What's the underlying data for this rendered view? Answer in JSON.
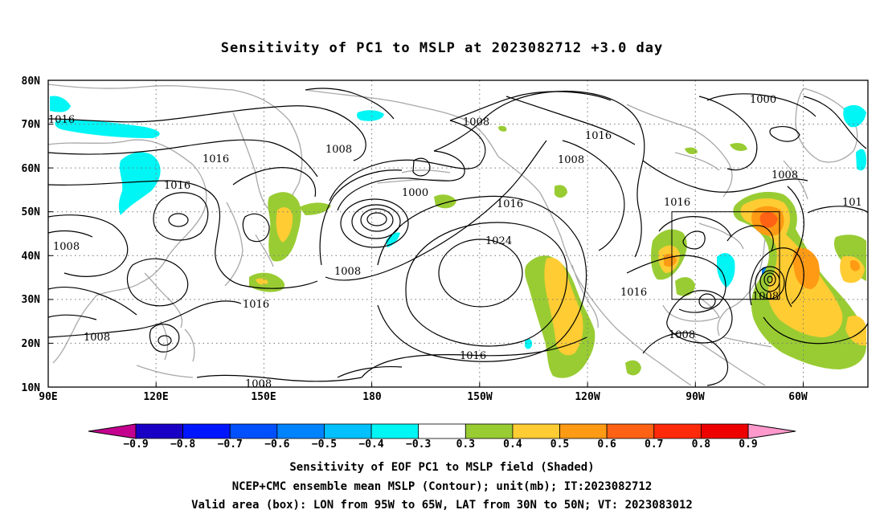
{
  "title": "Sensitivity of PC1 to MSLP at 2023082712 +3.0 day",
  "map": {
    "lat_labels": [
      "80N",
      "70N",
      "60N",
      "50N",
      "40N",
      "30N",
      "20N",
      "10N"
    ],
    "lon_labels": [
      "90E",
      "120E",
      "150E",
      "180",
      "150W",
      "120W",
      "90W",
      "60W"
    ],
    "contour_labels": [
      {
        "text": "1016"
      },
      {
        "text": "1008"
      },
      {
        "text": "1016"
      },
      {
        "text": "1016"
      },
      {
        "text": "1008"
      },
      {
        "text": "1008"
      },
      {
        "text": "1016"
      },
      {
        "text": "1008"
      },
      {
        "text": "1008"
      },
      {
        "text": "1000"
      },
      {
        "text": "1008"
      },
      {
        "text": "1016"
      },
      {
        "text": "1024"
      },
      {
        "text": "1016"
      },
      {
        "text": "1008"
      },
      {
        "text": "1016"
      },
      {
        "text": "1000"
      },
      {
        "text": "1008"
      },
      {
        "text": "1016"
      },
      {
        "text": "101"
      },
      {
        "text": "1016"
      },
      {
        "text": "1008"
      },
      {
        "text": "1008"
      }
    ],
    "valid_box": {
      "lon_range": [
        "95W",
        "65W"
      ],
      "lat_range": [
        "30N",
        "50N"
      ]
    }
  },
  "colorbar": {
    "colors": [
      "#c4008f",
      "#1a00c4",
      "#0016ff",
      "#0050ff",
      "#0083ff",
      "#00c0ff",
      "#00f5f5",
      "#ffffff",
      "#99cc33",
      "#ffcc33",
      "#ff9a14",
      "#ff6214",
      "#ff2a0a",
      "#ee0000",
      "#ff99cc"
    ],
    "labels": [
      "−0.9",
      "−0.8",
      "−0.7",
      "−0.6",
      "−0.5",
      "−0.4",
      "−0.3",
      "0.3",
      "0.4",
      "0.5",
      "0.6",
      "0.7",
      "0.8",
      "0.9"
    ]
  },
  "caption": {
    "line1": "Sensitivity of EOF PC1 to MSLP field (Shaded)",
    "line2": "NCEP+CMC ensemble mean MSLP (Contour); unit(mb); IT:2023082712",
    "line3": "Valid area (box): LON from 95W to 65W, LAT from 30N to 50N; VT: 2023083012"
  }
}
